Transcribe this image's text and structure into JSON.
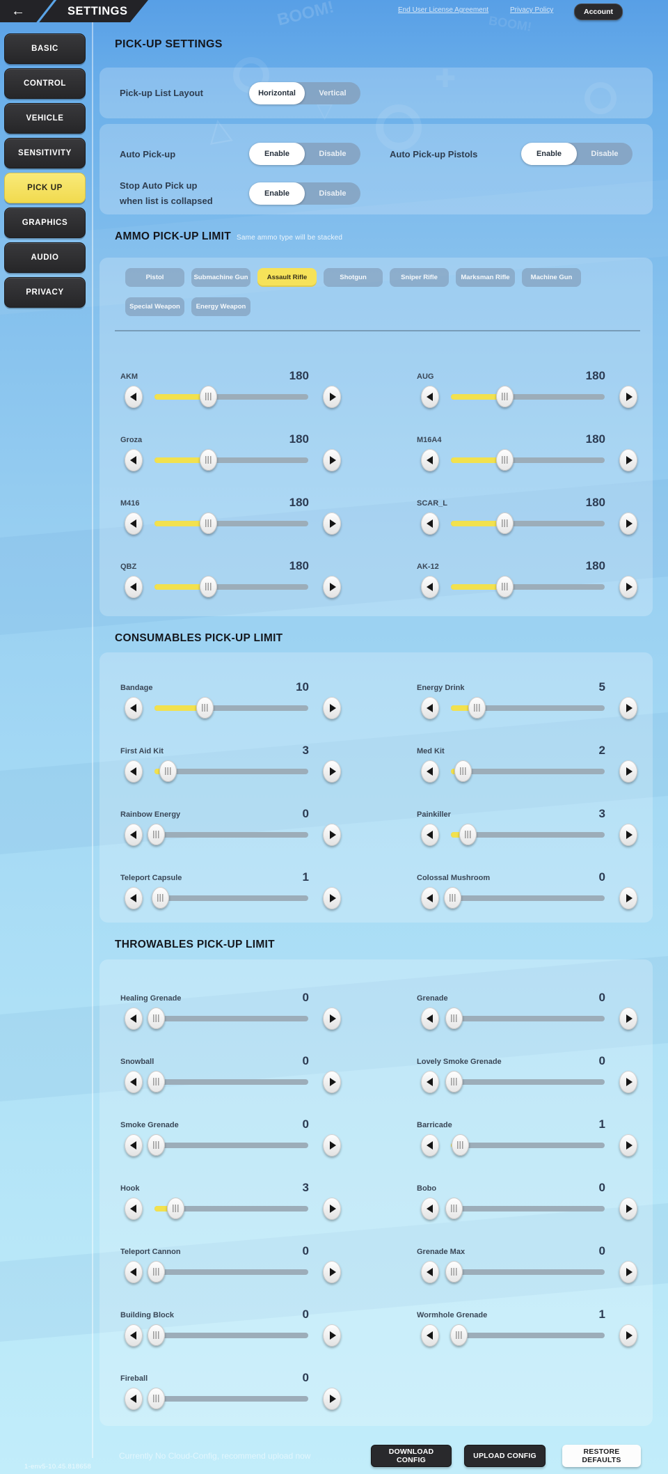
{
  "topbar": {
    "title": "SETTINGS",
    "links": [
      {
        "label": "End User License Agreement"
      },
      {
        "label": "Privacy Policy"
      }
    ],
    "account_label": "Account"
  },
  "sidebar": {
    "items": [
      {
        "label": "BASIC",
        "selected": false
      },
      {
        "label": "CONTROL",
        "selected": false
      },
      {
        "label": "VEHICLE",
        "selected": false
      },
      {
        "label": "SENSITIVITY",
        "selected": false
      },
      {
        "label": "PICK UP",
        "selected": true
      },
      {
        "label": "GRAPHICS",
        "selected": false
      },
      {
        "label": "AUDIO",
        "selected": false
      },
      {
        "label": "PRIVACY",
        "selected": false
      }
    ]
  },
  "pickup": {
    "title": "PICK-UP SETTINGS",
    "layout": {
      "label": "Pick-up List Layout",
      "options": [
        "Horizontal",
        "Vertical"
      ],
      "selected": "Horizontal"
    },
    "auto": {
      "label": "Auto Pick-up",
      "options": [
        "Enable",
        "Disable"
      ],
      "selected": "Enable"
    },
    "pistols": {
      "label": "Auto Pick-up Pistols",
      "options": [
        "Enable",
        "Disable"
      ],
      "selected": "Enable"
    },
    "stop": {
      "label_line1": "Stop Auto Pick up",
      "label_line2": "when list is collapsed",
      "options": [
        "Enable",
        "Disable"
      ],
      "selected": "Enable"
    }
  },
  "ammo": {
    "title": "AMMO PICK-UP LIMIT",
    "subtitle": "Same ammo type will be stacked",
    "tabs": [
      {
        "label": "Pistol",
        "selected": false
      },
      {
        "label": "Submachine Gun",
        "selected": false
      },
      {
        "label": "Assault Rifle",
        "selected": true
      },
      {
        "label": "Shotgun",
        "selected": false
      },
      {
        "label": "Sniper Rifle",
        "selected": false
      },
      {
        "label": "Marksman Rifle",
        "selected": false
      },
      {
        "label": "Machine Gun",
        "selected": false
      },
      {
        "label": "Special Weapon",
        "selected": false
      },
      {
        "label": "Energy Weapon",
        "selected": false
      }
    ],
    "sliders": [
      {
        "label": "AKM",
        "value": "180",
        "pct": 35
      },
      {
        "label": "AUG",
        "value": "180",
        "pct": 35
      },
      {
        "label": "Groza",
        "value": "180",
        "pct": 35
      },
      {
        "label": "M16A4",
        "value": "180",
        "pct": 35
      },
      {
        "label": "M416",
        "value": "180",
        "pct": 35
      },
      {
        "label": "SCAR_L",
        "value": "180",
        "pct": 35
      },
      {
        "label": "QBZ",
        "value": "180",
        "pct": 35
      },
      {
        "label": "AK-12",
        "value": "180",
        "pct": 35
      }
    ]
  },
  "consumables": {
    "title": "CONSUMABLES PICK-UP LIMIT",
    "sliders": [
      {
        "label": "Bandage",
        "value": "10",
        "pct": 33
      },
      {
        "label": "Energy Drink",
        "value": "5",
        "pct": 17
      },
      {
        "label": "First Aid Kit",
        "value": "3",
        "pct": 9
      },
      {
        "label": "Med Kit",
        "value": "2",
        "pct": 8
      },
      {
        "label": "Rainbow Energy",
        "value": "0",
        "pct": 1
      },
      {
        "label": "Painkiller",
        "value": "3",
        "pct": 11
      },
      {
        "label": "Teleport Capsule",
        "value": "1",
        "pct": 4
      },
      {
        "label": "Colossal Mushroom",
        "value": "0",
        "pct": 1
      }
    ]
  },
  "throwables": {
    "title": "THROWABLES PICK-UP LIMIT",
    "sliders": [
      {
        "label": "Healing Grenade",
        "value": "0",
        "pct": 1
      },
      {
        "label": "Grenade",
        "value": "0",
        "pct": 2
      },
      {
        "label": "Snowball",
        "value": "0",
        "pct": 1
      },
      {
        "label": "Lovely Smoke Grenade",
        "value": "0",
        "pct": 2
      },
      {
        "label": "Smoke Grenade",
        "value": "0",
        "pct": 1
      },
      {
        "label": "Barricade",
        "value": "1",
        "pct": 6
      },
      {
        "label": "Hook",
        "value": "3",
        "pct": 14
      },
      {
        "label": "Bobo",
        "value": "0",
        "pct": 2
      },
      {
        "label": "Teleport Cannon",
        "value": "0",
        "pct": 1
      },
      {
        "label": "Grenade Max",
        "value": "0",
        "pct": 2
      },
      {
        "label": "Building Block",
        "value": "0",
        "pct": 1
      },
      {
        "label": "Wormhole Grenade",
        "value": "1",
        "pct": 5
      },
      {
        "label": "Fireball",
        "value": "0",
        "pct": 1
      }
    ]
  },
  "footer": {
    "cloud_text": "Currently No Cloud-Config, recommend upload now",
    "buttons": [
      {
        "label": "DOWNLOAD CONFIG",
        "style": "dark"
      },
      {
        "label": "UPLOAD CONFIG",
        "style": "dark"
      },
      {
        "label": "RESTORE DEFAULTS",
        "style": "light"
      }
    ],
    "version": "1-env5-10.45.818658"
  },
  "doodles": {
    "boom": "BOOM!"
  },
  "colors": {
    "accent_yellow": "#f6e259",
    "background_top": "#589fe6",
    "background_bottom": "#c2edfa",
    "dark_button": "#29292c",
    "slider_fill": "#f2e14e",
    "slider_track": "#9cadb9"
  }
}
